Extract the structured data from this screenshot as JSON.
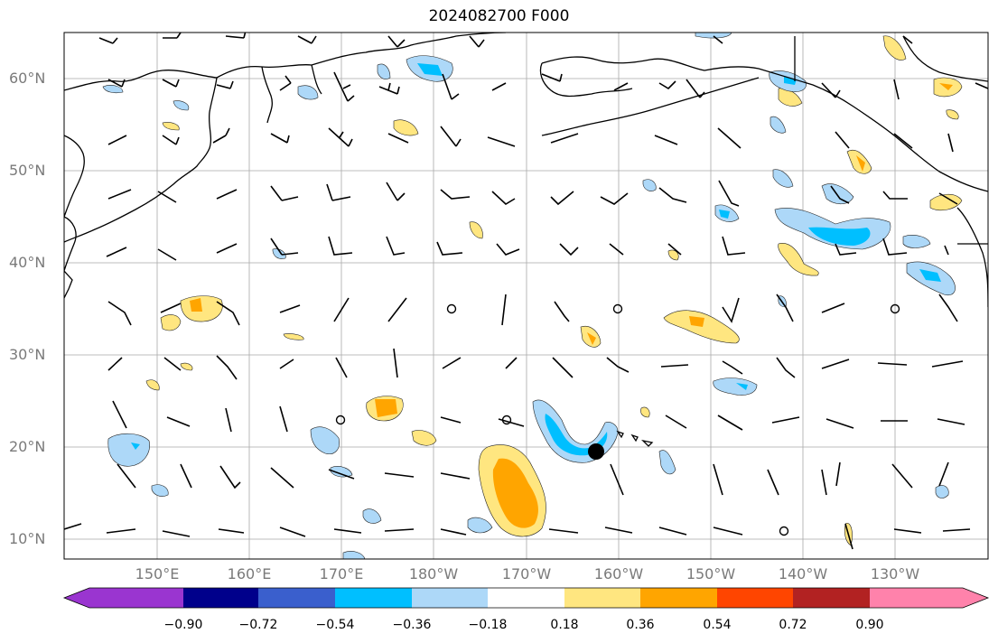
{
  "title": "2024082700 F000",
  "lat_labels": [
    "60°N",
    "50°N",
    "40°N",
    "30°N",
    "20°N",
    "10°N"
  ],
  "lon_labels": [
    "150°E",
    "160°E",
    "170°E",
    "180°W",
    "170°W",
    "160°W",
    "150°W",
    "140°W",
    "130°W"
  ],
  "colorbar": {
    "tick_labels": [
      "−0.90",
      "−0.72",
      "−0.54",
      "−0.36",
      "−0.18",
      "0.18",
      "0.36",
      "0.54",
      "0.72",
      "0.90"
    ],
    "colors": [
      "#9a35d0",
      "#00008b",
      "#3a5fcd",
      "#00bfff",
      "#add8f8",
      "#ffffff",
      "#ffe680",
      "#ffa500",
      "#ff4500",
      "#b22222",
      "#ff82ab"
    ]
  },
  "colors": {
    "land_outline": "#000000",
    "grid": "#a9a9a9",
    "positive_light": "#ffe680",
    "positive_mid": "#ffa500",
    "negative_light": "#add8f8",
    "negative_mid": "#00bfff"
  },
  "marker": {
    "name": "black dot",
    "lon": -162.5,
    "lat": 19.7
  },
  "chart_data": {
    "type": "contour-map",
    "title": "2024082700 F000",
    "lon_range": [
      140,
      240
    ],
    "lat_range": [
      8,
      65
    ],
    "contour_levels": [
      -0.9,
      -0.72,
      -0.54,
      -0.36,
      -0.18,
      0.18,
      0.36,
      0.54,
      0.72,
      0.9
    ],
    "overlay": "wind barbs"
  }
}
